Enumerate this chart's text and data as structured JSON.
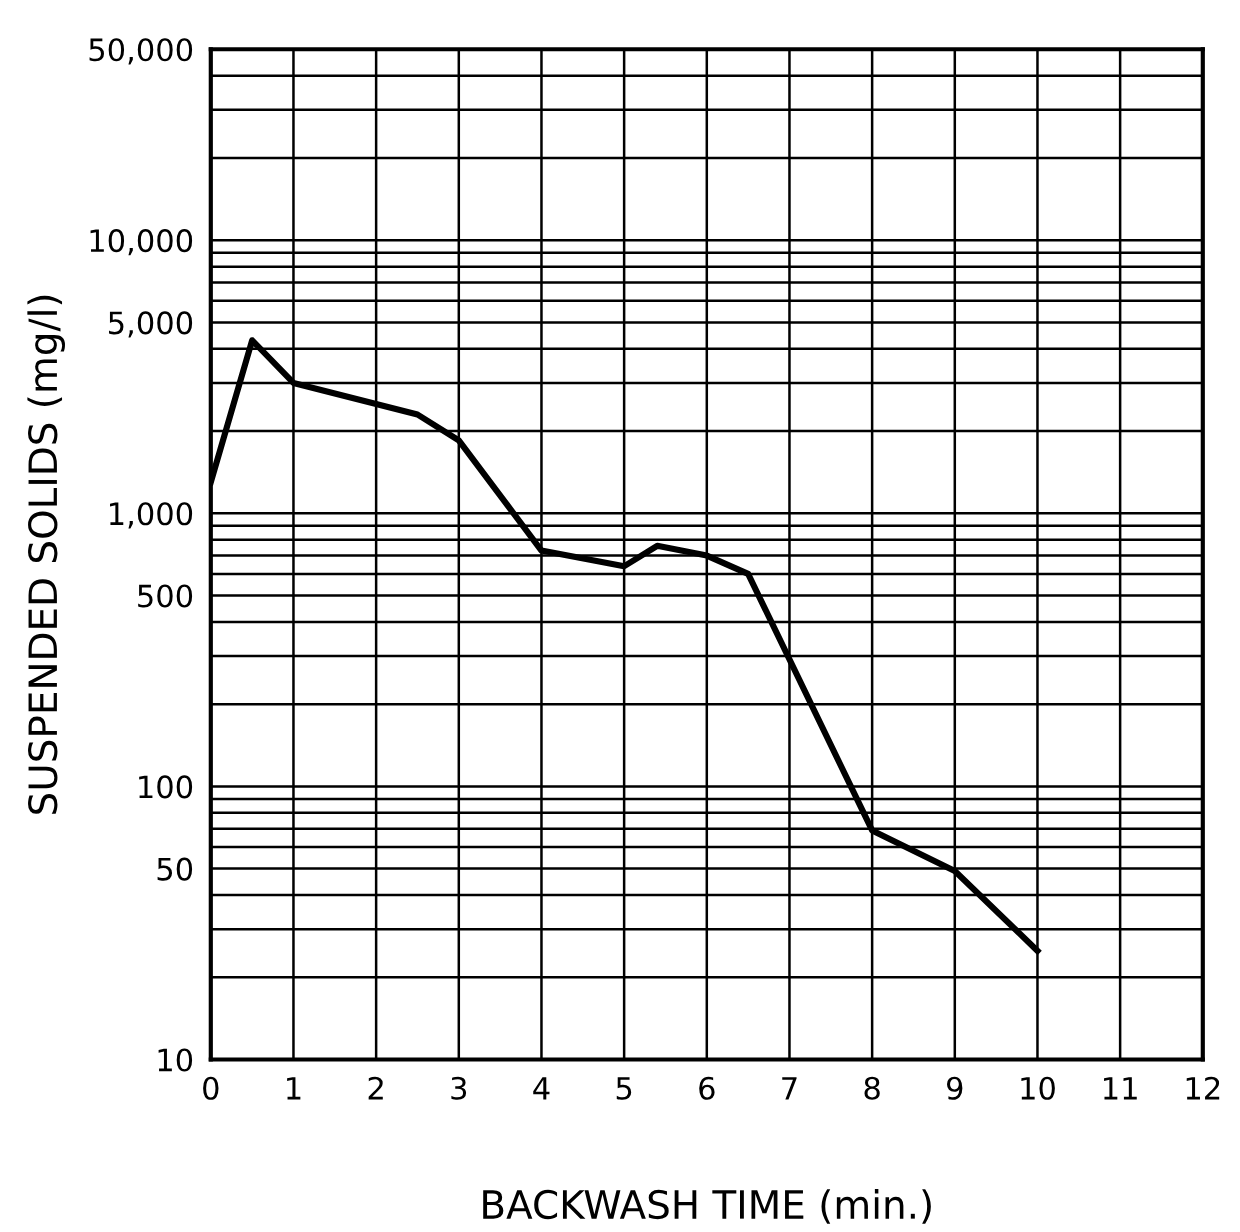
{
  "chart_data": {
    "type": "line",
    "xlabel": "BACKWASH TIME (min.)",
    "ylabel": "SUSPENDED SOLIDS (mg/l)",
    "x": [
      0,
      0.5,
      1,
      2.5,
      3,
      4,
      5,
      5.4,
      6,
      6.5,
      8,
      9,
      10
    ],
    "series": [
      {
        "color": "#000000",
        "values": [
          1300,
          4300,
          3000,
          2300,
          1850,
          730,
          640,
          760,
          700,
          600,
          69,
          49,
          25
        ]
      }
    ],
    "log": "y",
    "grid": true,
    "marker": "none",
    "line_style": "solid",
    "xlim": [
      0,
      12
    ],
    "xticks": [
      0,
      1,
      2,
      3,
      4,
      5,
      6,
      7,
      8,
      9,
      10,
      11,
      12
    ],
    "ylim": [
      10,
      50000
    ],
    "yticks": [
      {
        "value": 10,
        "label": "10"
      },
      {
        "value": 20,
        "label": null
      },
      {
        "value": 30,
        "label": null
      },
      {
        "value": 40,
        "label": null
      },
      {
        "value": 50,
        "label": "50"
      },
      {
        "value": 60,
        "label": null
      },
      {
        "value": 70,
        "label": null
      },
      {
        "value": 80,
        "label": null
      },
      {
        "value": 90,
        "label": null
      },
      {
        "value": 100,
        "label": "100"
      },
      {
        "value": 200,
        "label": null
      },
      {
        "value": 300,
        "label": null
      },
      {
        "value": 400,
        "label": null
      },
      {
        "value": 500,
        "label": "500"
      },
      {
        "value": 600,
        "label": null
      },
      {
        "value": 700,
        "label": null
      },
      {
        "value": 800,
        "label": null
      },
      {
        "value": 900,
        "label": null
      },
      {
        "value": 1000,
        "label": "1,000"
      },
      {
        "value": 2000,
        "label": null
      },
      {
        "value": 3000,
        "label": null
      },
      {
        "value": 4000,
        "label": null
      },
      {
        "value": 5000,
        "label": "5,000"
      },
      {
        "value": 6000,
        "label": null
      },
      {
        "value": 7000,
        "label": null
      },
      {
        "value": 8000,
        "label": null
      },
      {
        "value": 9000,
        "label": null
      },
      {
        "value": 10000,
        "label": "10,000"
      },
      {
        "value": 20000,
        "label": null
      },
      {
        "value": 30000,
        "label": null
      },
      {
        "value": 40000,
        "label": null
      },
      {
        "value": 50000,
        "label": "50,000"
      }
    ]
  }
}
